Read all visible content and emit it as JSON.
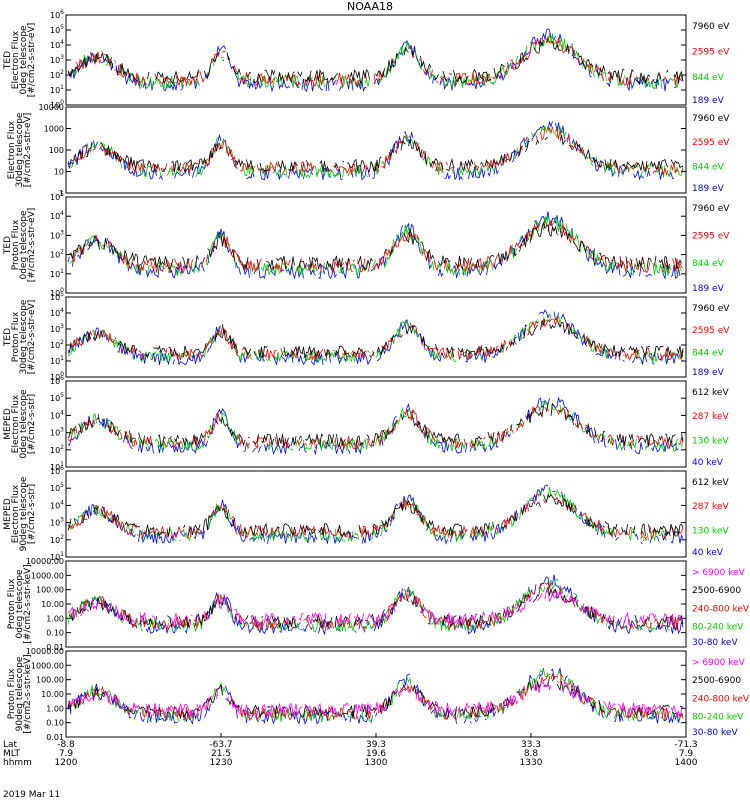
{
  "chart_data": {
    "type": "line",
    "title": "NOAA18",
    "date": "2019 Mar 11",
    "x_axis": {
      "rows": [
        {
          "label": "Lat",
          "values": [
            "-8.8",
            "-63.7",
            "39.3",
            "33.3",
            "-71.3"
          ]
        },
        {
          "label": "MLT",
          "values": [
            "7.9",
            "21.5",
            "19.6",
            "8.8",
            "7.9"
          ]
        },
        {
          "label": "hhmm",
          "values": [
            "1200",
            "1230",
            "1300",
            "1330",
            "1400"
          ]
        }
      ],
      "range": [
        "1200",
        "1400"
      ]
    },
    "panels": [
      {
        "id": "ted-electron-0",
        "ylabel": [
          "TED",
          "Electron Flux",
          "0deg telescope",
          "[#/cm2-s-str-eV]"
        ],
        "scale": "log",
        "ylim": [
          1,
          1000000
        ],
        "yticks": [
          "10^0",
          "10^1",
          "10^2",
          "10^3",
          "10^4",
          "10^5",
          "10^6"
        ],
        "series": [
          {
            "name": "7960 eV",
            "color": "#000000"
          },
          {
            "name": "2595 eV",
            "color": "#ff0000"
          },
          {
            "name": "844 eV",
            "color": "#00cc00"
          },
          {
            "name": "189 eV",
            "color": "#0000ff"
          }
        ]
      },
      {
        "id": "ted-electron-30",
        "ylabel": [
          "Electron Flux",
          "30deg telescope",
          "[#/cm2-s-str-eV]"
        ],
        "scale": "log",
        "ylim": [
          1,
          10000
        ],
        "yticks": [
          "1",
          "10",
          "100",
          "1000",
          "10000"
        ],
        "series": [
          {
            "name": "7960 eV",
            "color": "#000000"
          },
          {
            "name": "2595 eV",
            "color": "#ff0000"
          },
          {
            "name": "844 eV",
            "color": "#00cc00"
          },
          {
            "name": "189 eV",
            "color": "#0000ff"
          }
        ]
      },
      {
        "id": "ted-proton-0",
        "ylabel": [
          "TED",
          "Proton Flux",
          "0deg telescope",
          "[#/cm2-s-str-eV]"
        ],
        "scale": "log",
        "ylim": [
          1,
          100000
        ],
        "yticks": [
          "10^0",
          "10^1",
          "10^2",
          "10^3",
          "10^4",
          "10^5"
        ],
        "series": [
          {
            "name": "7960 eV",
            "color": "#000000"
          },
          {
            "name": "2595 eV",
            "color": "#ff0000"
          },
          {
            "name": "844 eV",
            "color": "#00cc00"
          },
          {
            "name": "189 eV",
            "color": "#0000ff"
          }
        ]
      },
      {
        "id": "ted-proton-30",
        "ylabel": [
          "TED",
          "Proton Flux",
          "30deg telescope",
          "[#/cm2-s-str-eV]"
        ],
        "scale": "log",
        "ylim": [
          1,
          100000
        ],
        "yticks": [
          "10^0",
          "10^1",
          "10^2",
          "10^3",
          "10^4",
          "10^5"
        ],
        "series": [
          {
            "name": "7960 eV",
            "color": "#000000"
          },
          {
            "name": "2595 eV",
            "color": "#ff0000"
          },
          {
            "name": "844 eV",
            "color": "#00cc00"
          },
          {
            "name": "189 eV",
            "color": "#0000ff"
          }
        ]
      },
      {
        "id": "meped-electron-0",
        "ylabel": [
          "MEPED",
          "Electron Flux",
          "0deg telescope",
          "[#/cm2-s-str]"
        ],
        "scale": "log",
        "ylim": [
          10,
          1000000
        ],
        "yticks": [
          "10^1",
          "10^2",
          "10^3",
          "10^4",
          "10^5",
          "10^6"
        ],
        "series": [
          {
            "name": "612 keV",
            "color": "#000000"
          },
          {
            "name": "287 keV",
            "color": "#ff0000"
          },
          {
            "name": "130 keV",
            "color": "#00cc00"
          },
          {
            "name": "40 keV",
            "color": "#0000ff"
          }
        ]
      },
      {
        "id": "meped-electron-90",
        "ylabel": [
          "MEPED",
          "Electron Flux",
          "90deg telescope",
          "[#/cm2-s-str]"
        ],
        "scale": "log",
        "ylim": [
          10,
          1000000
        ],
        "yticks": [
          "10^1",
          "10^2",
          "10^3",
          "10^4",
          "10^5",
          "10^6"
        ],
        "series": [
          {
            "name": "612 keV",
            "color": "#000000"
          },
          {
            "name": "287 keV",
            "color": "#ff0000"
          },
          {
            "name": "130 keV",
            "color": "#00cc00"
          },
          {
            "name": "40 keV",
            "color": "#0000ff"
          }
        ]
      },
      {
        "id": "meped-proton-0",
        "ylabel": [
          "Proton Flux",
          "0deg telescope",
          "[#/cm2-s-str-keV]"
        ],
        "scale": "log",
        "ylim": [
          0.01,
          10000
        ],
        "yticks": [
          "0.01",
          "0.10",
          "1.00",
          "10.00",
          "100.00",
          "1000.00",
          "10000.00"
        ],
        "series": [
          {
            "name": "> 6900 keV",
            "color": "#ff00ff"
          },
          {
            "name": "2500-6900",
            "color": "#000000"
          },
          {
            "name": "240-800 keV",
            "color": "#ff0000"
          },
          {
            "name": "80-240 keV",
            "color": "#00cc00"
          },
          {
            "name": "30-80 keV",
            "color": "#0000ff"
          }
        ]
      },
      {
        "id": "meped-proton-90",
        "ylabel": [
          "Proton Flux",
          "90deg telescope",
          "[#/cm2-s-str-keV]"
        ],
        "scale": "log",
        "ylim": [
          0.01,
          10000
        ],
        "yticks": [
          "0.01",
          "0.10",
          "1.00",
          "10.00",
          "100.00",
          "1000.00",
          "10000.00"
        ],
        "series": [
          {
            "name": "> 6900 keV",
            "color": "#ff00ff"
          },
          {
            "name": "2500-6900",
            "color": "#000000"
          },
          {
            "name": "240-800 keV",
            "color": "#ff0000"
          },
          {
            "name": "80-240 keV",
            "color": "#00cc00"
          },
          {
            "name": "30-80 keV",
            "color": "#0000ff"
          }
        ]
      }
    ]
  }
}
